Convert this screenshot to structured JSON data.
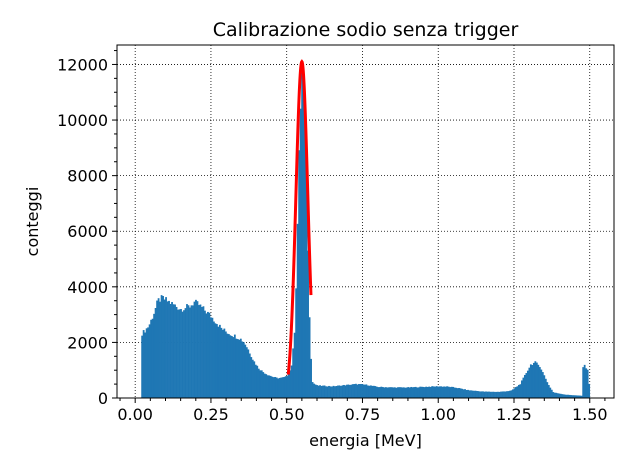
{
  "chart_data": {
    "type": "bar",
    "title": "Calibrazione sodio senza trigger",
    "xlabel": "energia [MeV]",
    "ylabel": "conteggi",
    "xlim": [
      -0.06,
      1.58
    ],
    "ylim": [
      0,
      12700
    ],
    "xticks": [
      0.0,
      0.25,
      0.5,
      0.75,
      1.0,
      1.25,
      1.5
    ],
    "xtick_labels": [
      "0.00",
      "0.25",
      "0.50",
      "0.75",
      "1.00",
      "1.25",
      "1.50"
    ],
    "yticks": [
      0,
      2000,
      4000,
      6000,
      8000,
      10000,
      12000
    ],
    "ytick_labels": [
      "0",
      "2000",
      "4000",
      "6000",
      "8000",
      "10000",
      "12000"
    ],
    "grid": true,
    "grid_style": "dotted",
    "histogram": {
      "color": "#1f77b4",
      "x_range": [
        0.02,
        1.5
      ],
      "profile": [
        [
          0.02,
          2300
        ],
        [
          0.03,
          2400
        ],
        [
          0.045,
          2600
        ],
        [
          0.06,
          3000
        ],
        [
          0.075,
          3500
        ],
        [
          0.09,
          3600
        ],
        [
          0.105,
          3500
        ],
        [
          0.12,
          3400
        ],
        [
          0.135,
          3300
        ],
        [
          0.15,
          3200
        ],
        [
          0.165,
          3250
        ],
        [
          0.18,
          3300
        ],
        [
          0.195,
          3450
        ],
        [
          0.21,
          3350
        ],
        [
          0.225,
          3200
        ],
        [
          0.245,
          3000
        ],
        [
          0.265,
          2750
        ],
        [
          0.285,
          2500
        ],
        [
          0.305,
          2350
        ],
        [
          0.325,
          2250
        ],
        [
          0.345,
          2150
        ],
        [
          0.36,
          2000
        ],
        [
          0.375,
          1700
        ],
        [
          0.39,
          1350
        ],
        [
          0.405,
          1100
        ],
        [
          0.42,
          950
        ],
        [
          0.435,
          850
        ],
        [
          0.45,
          780
        ],
        [
          0.465,
          720
        ],
        [
          0.48,
          720
        ],
        [
          0.495,
          750
        ],
        [
          0.505,
          850
        ],
        [
          0.515,
          1100
        ],
        [
          0.525,
          2200
        ],
        [
          0.532,
          4500
        ],
        [
          0.54,
          8500
        ],
        [
          0.548,
          11500
        ],
        [
          0.553,
          11800
        ],
        [
          0.558,
          11000
        ],
        [
          0.565,
          8000
        ],
        [
          0.572,
          4200
        ],
        [
          0.578,
          1800
        ],
        [
          0.585,
          550
        ],
        [
          0.6,
          450
        ],
        [
          0.65,
          420
        ],
        [
          0.7,
          470
        ],
        [
          0.73,
          500
        ],
        [
          0.76,
          480
        ],
        [
          0.8,
          400
        ],
        [
          0.85,
          380
        ],
        [
          0.9,
          380
        ],
        [
          0.95,
          400
        ],
        [
          1.0,
          420
        ],
        [
          1.03,
          410
        ],
        [
          1.06,
          370
        ],
        [
          1.1,
          280
        ],
        [
          1.15,
          230
        ],
        [
          1.2,
          220
        ],
        [
          1.24,
          260
        ],
        [
          1.27,
          500
        ],
        [
          1.29,
          900
        ],
        [
          1.305,
          1200
        ],
        [
          1.32,
          1280
        ],
        [
          1.335,
          1150
        ],
        [
          1.35,
          800
        ],
        [
          1.365,
          450
        ],
        [
          1.38,
          200
        ],
        [
          1.42,
          120
        ],
        [
          1.46,
          90
        ],
        [
          1.475,
          80
        ],
        [
          1.478,
          1200
        ],
        [
          1.488,
          1100
        ],
        [
          1.495,
          1000
        ],
        [
          1.5,
          0
        ]
      ]
    },
    "fit_curve": {
      "type": "gaussian",
      "color": "#ff0000",
      "mean": 0.55,
      "sigma": 0.0195,
      "amplitude": 12100,
      "x_range": [
        0.505,
        0.58
      ]
    }
  }
}
